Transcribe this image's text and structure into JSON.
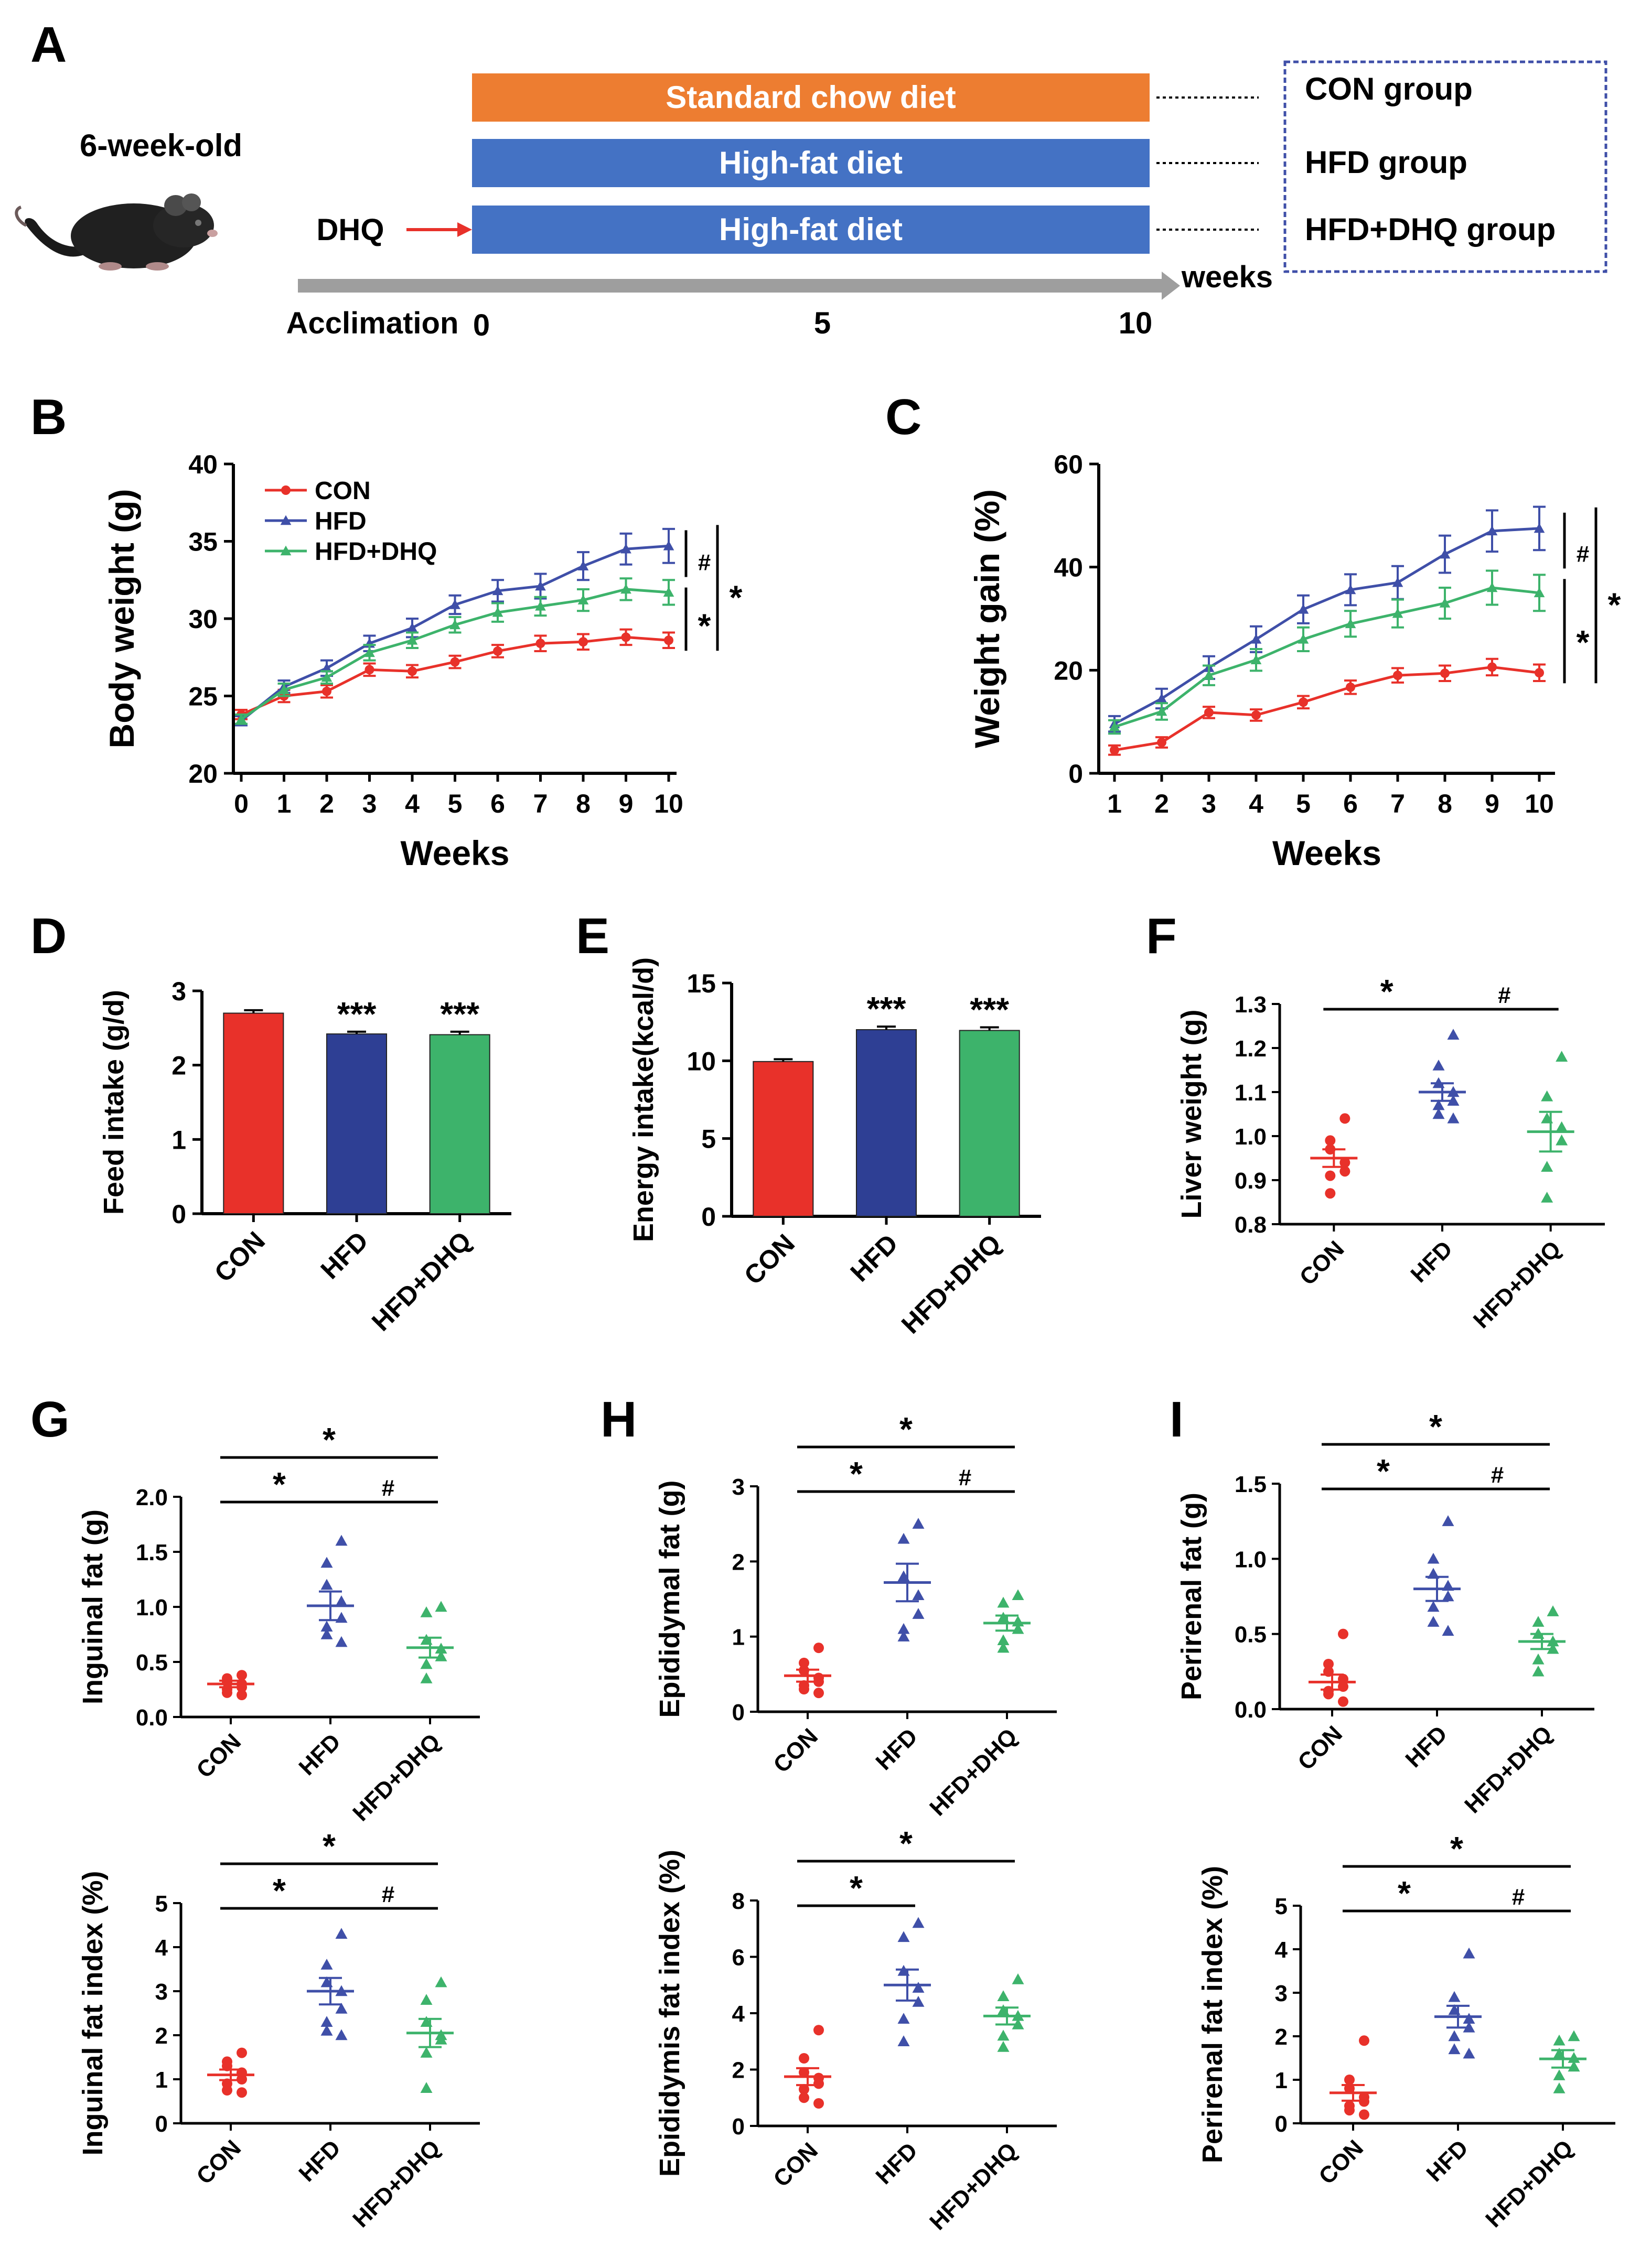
{
  "panels": {
    "A": {
      "letter": "A",
      "age_label": "6-week-old",
      "dhq_label": "DHQ",
      "diets": [
        {
          "label": "Standard chow diet",
          "color": "#ED7D31",
          "group": "CON group"
        },
        {
          "label": "High-fat diet",
          "color": "#4472C4",
          "group": "HFD group"
        },
        {
          "label": "High-fat diet",
          "color": "#4472C4",
          "group": "HFD+DHQ group"
        }
      ],
      "timeline_unit": "weeks",
      "timeline_labels": [
        "Acclimation",
        "0",
        "5",
        "10"
      ]
    },
    "B": {
      "letter": "B"
    },
    "C": {
      "letter": "C"
    },
    "D": {
      "letter": "D"
    },
    "E": {
      "letter": "E"
    },
    "F": {
      "letter": "F"
    },
    "G": {
      "letter": "G"
    },
    "H": {
      "letter": "H"
    },
    "I": {
      "letter": "I"
    }
  },
  "groups": [
    "CON",
    "HFD",
    "HFD+DHQ"
  ],
  "colors": {
    "CON": "#E8312A",
    "HFD": "#3F4FA8",
    "HFD+DHQ": "#3DB36B",
    "bar_HFD": "#2E3F94",
    "bar_HFD+DHQ": "#3DB36B"
  },
  "chart_data": [
    {
      "id": "B",
      "type": "line",
      "xlabel": "Weeks",
      "ylabel": "Body weight (g)",
      "x": [
        0,
        1,
        2,
        3,
        4,
        5,
        6,
        7,
        8,
        9,
        10
      ],
      "xticks": [
        "0",
        "1",
        "2",
        "3",
        "4",
        "5",
        "6",
        "7",
        "8",
        "9",
        "10"
      ],
      "ylim": [
        20,
        40
      ],
      "yticks": [
        "20",
        "25",
        "30",
        "35",
        "40"
      ],
      "legend": [
        "CON",
        "HFD",
        "HFD+DHQ"
      ],
      "series": [
        {
          "name": "CON",
          "values": [
            23.8,
            25.0,
            25.3,
            26.7,
            26.6,
            27.2,
            27.9,
            28.4,
            28.5,
            28.8,
            28.6
          ],
          "err": [
            0.3,
            0.4,
            0.4,
            0.4,
            0.4,
            0.4,
            0.4,
            0.5,
            0.5,
            0.5,
            0.5
          ]
        },
        {
          "name": "HFD",
          "values": [
            23.4,
            25.6,
            26.8,
            28.4,
            29.4,
            30.9,
            31.8,
            32.1,
            33.4,
            34.5,
            34.7
          ],
          "err": [
            0.3,
            0.4,
            0.5,
            0.5,
            0.6,
            0.6,
            0.7,
            0.8,
            0.9,
            1.0,
            1.1
          ]
        },
        {
          "name": "HFD+DHQ",
          "values": [
            23.5,
            25.4,
            26.2,
            27.8,
            28.6,
            29.6,
            30.4,
            30.8,
            31.2,
            31.9,
            31.7
          ],
          "err": [
            0.3,
            0.4,
            0.4,
            0.5,
            0.5,
            0.5,
            0.6,
            0.6,
            0.7,
            0.7,
            0.8
          ]
        }
      ],
      "annotations": [
        "#",
        "*",
        "*"
      ]
    },
    {
      "id": "C",
      "type": "line",
      "xlabel": "Weeks",
      "ylabel": "Weight gain (%)",
      "x": [
        1,
        2,
        3,
        4,
        5,
        6,
        7,
        8,
        9,
        10
      ],
      "xticks": [
        "1",
        "2",
        "3",
        "4",
        "5",
        "6",
        "7",
        "8",
        "9",
        "10"
      ],
      "ylim": [
        0,
        60
      ],
      "yticks": [
        "0",
        "20",
        "40",
        "60"
      ],
      "series": [
        {
          "name": "CON",
          "values": [
            4.5,
            6.0,
            11.8,
            11.3,
            13.8,
            16.7,
            19.0,
            19.4,
            20.6,
            19.5
          ],
          "err": [
            0.9,
            1.0,
            1.1,
            1.1,
            1.2,
            1.3,
            1.4,
            1.5,
            1.6,
            1.6
          ]
        },
        {
          "name": "HFD",
          "values": [
            9.6,
            14.5,
            20.5,
            26.0,
            31.8,
            35.6,
            37.0,
            42.5,
            47.0,
            47.5
          ],
          "err": [
            1.5,
            1.9,
            2.2,
            2.5,
            2.7,
            3.0,
            3.2,
            3.6,
            4.0,
            4.2
          ]
        },
        {
          "name": "HFD+DHQ",
          "values": [
            9.0,
            12.0,
            19.0,
            22.0,
            26.0,
            29.0,
            31.0,
            33.0,
            36.0,
            35.0
          ],
          "err": [
            1.3,
            1.6,
            1.9,
            2.1,
            2.3,
            2.5,
            2.7,
            3.0,
            3.3,
            3.5
          ]
        }
      ],
      "annotations": [
        "#",
        "*",
        "*"
      ]
    },
    {
      "id": "D",
      "type": "bar",
      "ylabel": "Feed intake (g/d)",
      "categories": [
        "CON",
        "HFD",
        "HFD+DHQ"
      ],
      "values": [
        2.7,
        2.42,
        2.41
      ],
      "err": [
        0.04,
        0.03,
        0.04
      ],
      "ylim": [
        0,
        3
      ],
      "yticks": [
        "0",
        "1",
        "2",
        "3"
      ],
      "sig": [
        "",
        "***",
        "***"
      ]
    },
    {
      "id": "E",
      "type": "bar",
      "ylabel": "Energy intake(kcal/d)",
      "categories": [
        "CON",
        "HFD",
        "HFD+DHQ"
      ],
      "values": [
        9.95,
        12.0,
        11.95
      ],
      "err": [
        0.15,
        0.2,
        0.2
      ],
      "ylim": [
        0,
        15
      ],
      "yticks": [
        "0",
        "5",
        "10",
        "15"
      ],
      "sig": [
        "",
        "***",
        "***"
      ]
    },
    {
      "id": "F",
      "type": "scatter",
      "ylabel": "Liver weight (g)",
      "categories": [
        "CON",
        "HFD",
        "HFD+DHQ"
      ],
      "ylim": [
        0.8,
        1.3
      ],
      "yticks": [
        "0.8",
        "0.9",
        "1.0",
        "1.1",
        "1.2",
        "1.3"
      ],
      "points": [
        [
          1.04,
          0.99,
          0.97,
          0.94,
          0.92,
          0.91,
          0.87
        ],
        [
          1.23,
          1.16,
          1.12,
          1.1,
          1.08,
          1.07,
          1.05,
          1.04
        ],
        [
          1.18,
          1.09,
          1.04,
          1.02,
          0.99,
          0.93,
          0.86
        ]
      ],
      "means": [
        0.95,
        1.1,
        1.01
      ],
      "sems": [
        0.02,
        0.02,
        0.045
      ],
      "comparisons": [
        {
          "a": 0,
          "b": 1,
          "label": "*"
        },
        {
          "a": 1,
          "b": 2,
          "label": "#"
        }
      ]
    },
    {
      "id": "G1",
      "type": "scatter",
      "ylabel": "Inguinal fat (g)",
      "categories": [
        "CON",
        "HFD",
        "HFD+DHQ"
      ],
      "ylim": [
        0,
        2
      ],
      "yticks": [
        "0.0",
        "0.5",
        "1.0",
        "1.5",
        "2.0"
      ],
      "points": [
        [
          0.38,
          0.35,
          0.32,
          0.3,
          0.27,
          0.25,
          0.22,
          0.2
        ],
        [
          1.6,
          1.4,
          1.2,
          1.05,
          0.9,
          0.82,
          0.75,
          0.68
        ],
        [
          1.0,
          0.95,
          0.7,
          0.62,
          0.55,
          0.48,
          0.35
        ]
      ],
      "means": [
        0.3,
        1.01,
        0.63
      ],
      "sems": [
        0.03,
        0.13,
        0.09
      ],
      "comparisons": [
        {
          "a": 0,
          "b": 1,
          "label": "*"
        },
        {
          "a": 1,
          "b": 2,
          "label": "#"
        },
        {
          "a": 0,
          "b": 2,
          "label": "*"
        }
      ]
    },
    {
      "id": "G2",
      "type": "scatter",
      "ylabel": "Inguinal fat index (%)",
      "categories": [
        "CON",
        "HFD",
        "HFD+DHQ"
      ],
      "ylim": [
        0,
        5
      ],
      "yticks": [
        "0",
        "1",
        "2",
        "3",
        "4",
        "5"
      ],
      "points": [
        [
          1.6,
          1.4,
          1.3,
          1.15,
          1.0,
          0.9,
          0.75,
          0.7
        ],
        [
          4.3,
          3.6,
          3.2,
          3.0,
          2.6,
          2.3,
          2.1,
          2.0
        ],
        [
          3.2,
          2.8,
          2.3,
          2.0,
          1.9,
          1.6,
          0.8
        ]
      ],
      "means": [
        1.1,
        3.0,
        2.05
      ],
      "sems": [
        0.12,
        0.3,
        0.32
      ],
      "comparisons": [
        {
          "a": 0,
          "b": 1,
          "label": "*"
        },
        {
          "a": 1,
          "b": 2,
          "label": "#"
        },
        {
          "a": 0,
          "b": 2,
          "label": "*"
        }
      ]
    },
    {
      "id": "H1",
      "type": "scatter",
      "ylabel": "Epididymal fat (g)",
      "categories": [
        "CON",
        "HFD",
        "HFD+DHQ"
      ],
      "ylim": [
        0,
        3
      ],
      "yticks": [
        "0",
        "1",
        "2",
        "3"
      ],
      "points": [
        [
          0.85,
          0.65,
          0.55,
          0.45,
          0.4,
          0.35,
          0.3,
          0.25
        ],
        [
          2.5,
          2.3,
          1.8,
          1.55,
          1.3,
          1.1,
          1.0
        ],
        [
          1.55,
          1.45,
          1.25,
          1.2,
          1.1,
          0.95,
          0.85
        ]
      ],
      "means": [
        0.48,
        1.72,
        1.18
      ],
      "sems": [
        0.08,
        0.25,
        0.1
      ],
      "comparisons": [
        {
          "a": 0,
          "b": 1,
          "label": "*"
        },
        {
          "a": 1,
          "b": 2,
          "label": "#"
        },
        {
          "a": 0,
          "b": 2,
          "label": "*"
        }
      ]
    },
    {
      "id": "H2",
      "type": "scatter",
      "ylabel": "Epididymis fat index (%)",
      "categories": [
        "CON",
        "HFD",
        "HFD+DHQ"
      ],
      "ylim": [
        0,
        8
      ],
      "yticks": [
        "0",
        "2",
        "4",
        "6",
        "8"
      ],
      "points": [
        [
          3.4,
          2.4,
          1.9,
          1.7,
          1.5,
          1.3,
          1.0,
          0.8
        ],
        [
          7.2,
          6.7,
          5.5,
          4.9,
          4.4,
          3.8,
          3.0
        ],
        [
          5.2,
          4.6,
          4.1,
          3.9,
          3.6,
          3.2,
          2.8
        ]
      ],
      "means": [
        1.75,
        5.0,
        3.9
      ],
      "sems": [
        0.3,
        0.55,
        0.3
      ],
      "comparisons": [
        {
          "a": 0,
          "b": 1,
          "label": "*"
        },
        {
          "a": 0,
          "b": 2,
          "label": "*"
        }
      ]
    },
    {
      "id": "I1",
      "type": "scatter",
      "ylabel": "Perirenal fat (g)",
      "categories": [
        "CON",
        "HFD",
        "HFD+DHQ"
      ],
      "ylim": [
        0,
        1.5
      ],
      "yticks": [
        "0.0",
        "0.5",
        "1.0",
        "1.5"
      ],
      "points": [
        [
          0.5,
          0.3,
          0.25,
          0.2,
          0.15,
          0.12,
          0.1,
          0.05
        ],
        [
          1.25,
          1.0,
          0.9,
          0.82,
          0.75,
          0.68,
          0.58,
          0.52
        ],
        [
          0.65,
          0.58,
          0.5,
          0.45,
          0.4,
          0.33,
          0.25
        ]
      ],
      "means": [
        0.18,
        0.8,
        0.45
      ],
      "sems": [
        0.05,
        0.08,
        0.05
      ],
      "comparisons": [
        {
          "a": 0,
          "b": 1,
          "label": "*"
        },
        {
          "a": 1,
          "b": 2,
          "label": "#"
        },
        {
          "a": 0,
          "b": 2,
          "label": "*"
        }
      ]
    },
    {
      "id": "I2",
      "type": "scatter",
      "ylabel": "Perirenal fat index (%)",
      "categories": [
        "CON",
        "HFD",
        "HFD+DHQ"
      ],
      "ylim": [
        0,
        5
      ],
      "yticks": [
        "0",
        "1",
        "2",
        "3",
        "4",
        "5"
      ],
      "points": [
        [
          1.9,
          1.0,
          0.8,
          0.6,
          0.5,
          0.4,
          0.3,
          0.2
        ],
        [
          3.9,
          2.9,
          2.6,
          2.4,
          2.2,
          2.0,
          1.7,
          1.6
        ],
        [
          2.0,
          1.9,
          1.6,
          1.5,
          1.3,
          1.1,
          0.8
        ]
      ],
      "means": [
        0.7,
        2.45,
        1.48
      ],
      "sems": [
        0.18,
        0.25,
        0.2
      ],
      "comparisons": [
        {
          "a": 0,
          "b": 1,
          "label": "*"
        },
        {
          "a": 1,
          "b": 2,
          "label": "#"
        },
        {
          "a": 0,
          "b": 2,
          "label": "*"
        }
      ]
    }
  ]
}
